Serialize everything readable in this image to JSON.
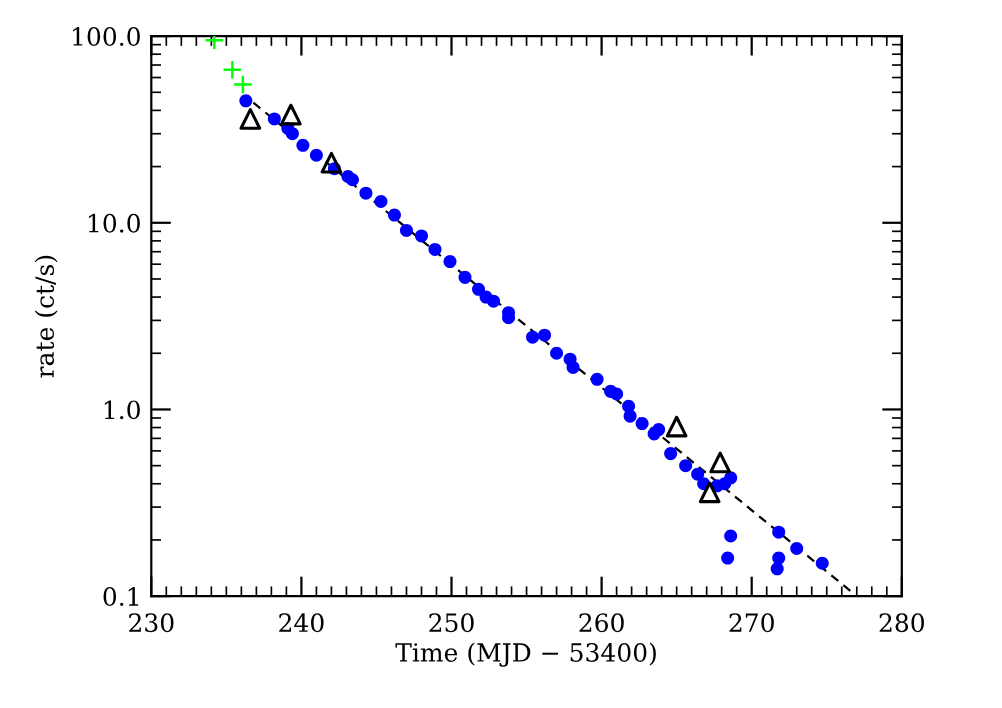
{
  "chart_data": {
    "type": "scatter",
    "xlabel": "Time (MJD − 53400)",
    "ylabel": "rate (ct/s)",
    "log": "y",
    "xlim": [
      230,
      280
    ],
    "xticks": [
      230,
      240,
      250,
      260,
      270,
      280
    ],
    "ylim": [
      0.1,
      100
    ],
    "yticks": [
      {
        "value": 0.1,
        "label": "0.1"
      },
      {
        "value": 1,
        "label": "1.0"
      },
      {
        "value": 10,
        "label": "10.0"
      },
      {
        "value": 100,
        "label": "100.0"
      }
    ],
    "grid": false,
    "legend": false,
    "series": [
      {
        "type": "line",
        "color": "#000000",
        "marker": "none",
        "line_style": "dashed",
        "x": [
          236.8,
          277.0
        ],
        "values": [
          44,
          0.1
        ]
      },
      {
        "color": "#0000ff",
        "marker": "circle",
        "x": [
          236.3,
          238.2,
          239.1,
          239.4,
          240.1,
          241.0,
          242.2,
          243.1,
          243.4,
          244.3,
          245.3,
          246.2,
          247.0,
          248.0,
          248.9,
          249.9,
          250.9,
          251.8,
          252.3,
          252.8,
          253.8,
          253.8,
          255.4,
          256.2,
          257.0,
          257.9,
          258.1,
          259.7,
          260.6,
          261.0,
          261.8,
          261.9,
          262.7,
          263.5,
          263.8,
          264.6,
          265.6,
          266.4,
          266.8,
          267.7,
          268.2,
          268.6,
          268.6,
          268.4,
          271.8,
          273.0,
          271.8,
          271.7,
          274.7
        ],
        "values": [
          45,
          36,
          32,
          30,
          26,
          23,
          19.5,
          17.7,
          17,
          14.4,
          13,
          11,
          9.1,
          8.5,
          7.2,
          6.2,
          5.1,
          4.4,
          4.0,
          3.8,
          3.3,
          3.1,
          2.44,
          2.5,
          2.0,
          1.86,
          1.68,
          1.45,
          1.25,
          1.21,
          1.04,
          0.92,
          0.84,
          0.74,
          0.78,
          0.58,
          0.5,
          0.45,
          0.4,
          0.39,
          0.4,
          0.43,
          0.21,
          0.16,
          0.22,
          0.18,
          0.16,
          0.14,
          0.15
        ]
      },
      {
        "color": "#00ff00",
        "marker": "cross",
        "x": [
          234.2,
          235.4,
          236.1
        ],
        "values": [
          95,
          66,
          55
        ]
      },
      {
        "color": "#000000",
        "marker": "triangle",
        "x": [
          236.6,
          239.3,
          242.0,
          265.0,
          267.9,
          267.2
        ],
        "values": [
          36,
          38,
          21,
          0.81,
          0.52,
          0.36
        ]
      }
    ]
  }
}
